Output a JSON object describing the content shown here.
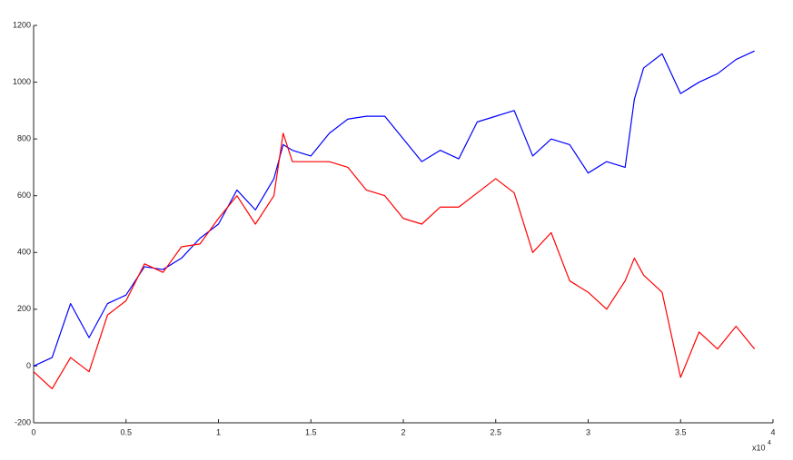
{
  "chart_data": {
    "type": "line",
    "x": [
      0,
      1000,
      2000,
      3000,
      4000,
      5000,
      6000,
      7000,
      8000,
      9000,
      10000,
      11000,
      12000,
      13000,
      13500,
      14000,
      15000,
      16000,
      17000,
      18000,
      19000,
      20000,
      21000,
      22000,
      23000,
      24000,
      25000,
      26000,
      27000,
      28000,
      29000,
      30000,
      31000,
      32000,
      32500,
      33000,
      34000,
      35000,
      36000,
      37000,
      38000,
      39000
    ],
    "series": [
      {
        "color": "#0000ff",
        "values": [
          0,
          30,
          220,
          100,
          220,
          250,
          350,
          340,
          380,
          450,
          500,
          620,
          550,
          660,
          780,
          760,
          740,
          820,
          870,
          880,
          880,
          800,
          720,
          760,
          730,
          860,
          880,
          900,
          740,
          800,
          780,
          680,
          720,
          700,
          940,
          1050,
          1100,
          960,
          1000,
          1030,
          1080,
          1110
        ]
      },
      {
        "color": "#ff0000",
        "values": [
          -20,
          -80,
          30,
          -20,
          180,
          230,
          360,
          330,
          420,
          430,
          520,
          600,
          500,
          600,
          820,
          720,
          720,
          720,
          700,
          620,
          600,
          520,
          500,
          560,
          560,
          610,
          660,
          610,
          400,
          470,
          300,
          260,
          200,
          300,
          380,
          320,
          260,
          -40,
          120,
          60,
          140,
          60
        ]
      }
    ],
    "xlim": [
      0,
      40000
    ],
    "xticks": [
      {
        "value": 0,
        "label": "0"
      },
      {
        "value": 5000,
        "label": "0.5"
      },
      {
        "value": 10000,
        "label": "1"
      },
      {
        "value": 15000,
        "label": "1.5"
      },
      {
        "value": 20000,
        "label": "2"
      },
      {
        "value": 25000,
        "label": "2.5"
      },
      {
        "value": 30000,
        "label": "3"
      },
      {
        "value": 35000,
        "label": "3.5"
      },
      {
        "value": 40000,
        "label": "4"
      }
    ],
    "x_multiplier": {
      "base": "x10",
      "exponent": "4"
    },
    "ylim": [
      -200,
      1200
    ],
    "yticks": [
      -200,
      0,
      200,
      400,
      600,
      800,
      1000,
      1200
    ],
    "grid": false
  }
}
